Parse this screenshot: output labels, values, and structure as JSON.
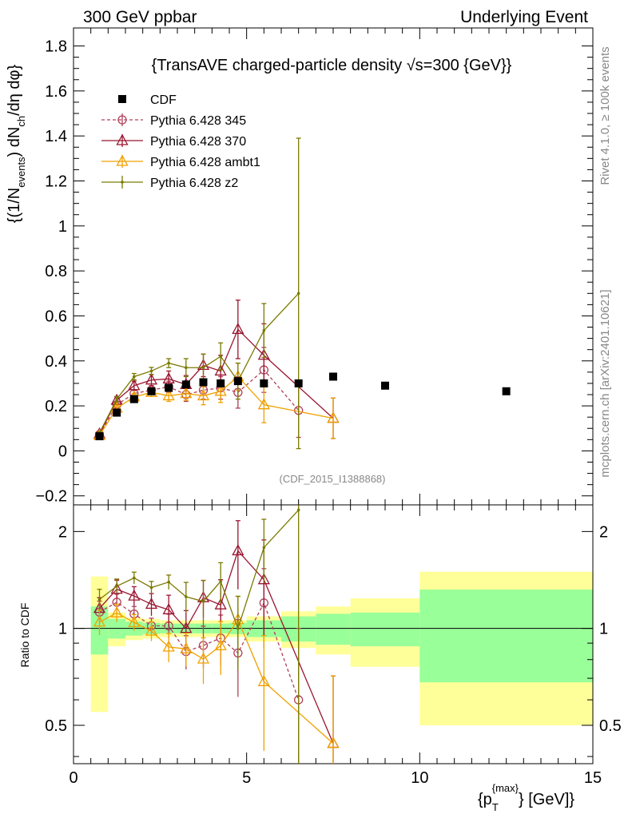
{
  "header": {
    "left": "300 GeV ppbar",
    "right": "Underlying Event",
    "watermark_right": "Rivet 4.1.0, ≥ 100k events",
    "watermark_bottom": "mcplots.cern.ch [arXiv:2401.10621]",
    "analysis_id": "(CDF_2015_I1388868)"
  },
  "chart_data": {
    "type": "line",
    "title": "{TransAVE charged-particle density √s=300 {GeV}}",
    "ylabel": "{(1/N_events) dN_ch/dη dφ}",
    "ylabel_parts": [
      "{(1/N",
      "events",
      ") dN",
      "ch",
      "/dη  dφ}"
    ],
    "xlabel": "{p_T^{max}} [GeV]}",
    "xlabel_parts": [
      "{p",
      "T",
      "{max}",
      "} [GeV]}"
    ],
    "ratio_ylabel": "Ratio to CDF",
    "xlim": [
      0,
      15
    ],
    "ylim": [
      -0.24,
      1.88
    ],
    "ratio_ylim": [
      0.38,
      2.42
    ],
    "x_ticks": [
      0,
      5,
      10,
      15
    ],
    "y_ticks": [
      -0.2,
      0,
      0.2,
      0.4,
      0.6,
      0.8,
      1,
      1.2,
      1.4,
      1.6,
      1.8
    ],
    "y_tick_labels": [
      "−0.2",
      "0",
      "0.2",
      "0.4",
      "0.6",
      "0.8",
      "1",
      "1.2",
      "1.4",
      "1.6",
      "1.8"
    ],
    "ratio_ticks": [
      0.5,
      1,
      2
    ],
    "ratio_tick_labels": [
      "0.5",
      "1",
      "2"
    ],
    "x_tick_labels": [
      "0",
      "5",
      "10",
      "15"
    ],
    "reference": {
      "name": "CDF",
      "x": [
        0.75,
        1.25,
        1.75,
        2.25,
        2.75,
        3.25,
        3.75,
        4.25,
        4.75,
        5.5,
        6.5,
        7.5,
        9.0,
        12.5
      ],
      "y": [
        0.065,
        0.17,
        0.23,
        0.265,
        0.28,
        0.295,
        0.305,
        0.3,
        0.31,
        0.3,
        0.3,
        0.33,
        0.29,
        0.265
      ],
      "bins": [
        [
          0.5,
          1.0
        ],
        [
          1.0,
          1.5
        ],
        [
          1.5,
          2.0
        ],
        [
          2.0,
          2.5
        ],
        [
          2.5,
          3.0
        ],
        [
          3.0,
          3.5
        ],
        [
          3.5,
          4.0
        ],
        [
          4.0,
          4.5
        ],
        [
          4.5,
          5.0
        ],
        [
          5.0,
          6.0
        ],
        [
          6.0,
          7.0
        ],
        [
          7.0,
          8.0
        ],
        [
          8.0,
          10.0
        ],
        [
          10.0,
          15.0
        ]
      ],
      "band_stat": [
        0.17,
        0.07,
        0.05,
        0.04,
        0.035,
        0.035,
        0.035,
        0.035,
        0.04,
        0.06,
        0.09,
        0.11,
        0.12,
        0.32
      ],
      "band_total": [
        0.45,
        0.12,
        0.08,
        0.07,
        0.06,
        0.06,
        0.06,
        0.06,
        0.06,
        0.09,
        0.13,
        0.17,
        0.24,
        0.5
      ]
    },
    "series": [
      {
        "name": "Pythia 6.428 345",
        "color": "#b04058",
        "marker": "circle-open",
        "dashed": true,
        "x": [
          0.75,
          1.25,
          1.75,
          2.25,
          2.75,
          3.25,
          3.75,
          4.25,
          4.75,
          5.5,
          6.5
        ],
        "y": [
          0.073,
          0.205,
          0.255,
          0.27,
          0.285,
          0.25,
          0.27,
          0.28,
          0.26,
          0.36,
          0.18
        ],
        "yerr": [
          0.006,
          0.012,
          0.014,
          0.015,
          0.025,
          0.03,
          0.04,
          0.05,
          0.07,
          0.1,
          0.12
        ]
      },
      {
        "name": "Pythia 6.428 370",
        "color": "#9a1530",
        "marker": "triangle-open",
        "dashed": false,
        "x": [
          0.75,
          1.25,
          1.75,
          2.25,
          2.75,
          3.25,
          3.75,
          4.25,
          4.75,
          5.5,
          7.5
        ],
        "y": [
          0.075,
          0.225,
          0.29,
          0.315,
          0.32,
          0.295,
          0.38,
          0.355,
          0.54,
          0.425,
          0.145
        ],
        "yerr": [
          0.006,
          0.015,
          0.02,
          0.025,
          0.035,
          0.04,
          0.05,
          0.07,
          0.13,
          0.14,
          0.09
        ]
      },
      {
        "name": "Pythia 6.428 ambt1",
        "color": "#f0a000",
        "marker": "triangle-open",
        "dashed": false,
        "x": [
          0.75,
          1.25,
          1.75,
          2.25,
          2.75,
          3.25,
          3.75,
          4.25,
          4.75,
          5.5,
          7.5
        ],
        "y": [
          0.068,
          0.19,
          0.24,
          0.26,
          0.245,
          0.255,
          0.245,
          0.265,
          0.33,
          0.205,
          0.145
        ],
        "yerr": [
          0.006,
          0.012,
          0.014,
          0.018,
          0.025,
          0.03,
          0.04,
          0.05,
          0.06,
          0.08,
          0.09
        ]
      },
      {
        "name": "Pythia 6.428 z2",
        "color": "#7a7a00",
        "marker": "dot",
        "dashed": false,
        "x": [
          0.75,
          1.25,
          1.75,
          2.25,
          2.75,
          3.25,
          3.75,
          4.25,
          4.75,
          5.5,
          6.5
        ],
        "y": [
          0.08,
          0.23,
          0.33,
          0.355,
          0.39,
          0.37,
          0.37,
          0.42,
          0.31,
          0.535,
          0.7
        ],
        "yerr": [
          0.006,
          0.012,
          0.014,
          0.016,
          0.02,
          0.04,
          0.06,
          0.06,
          0.08,
          0.12,
          0.69
        ]
      }
    ]
  }
}
